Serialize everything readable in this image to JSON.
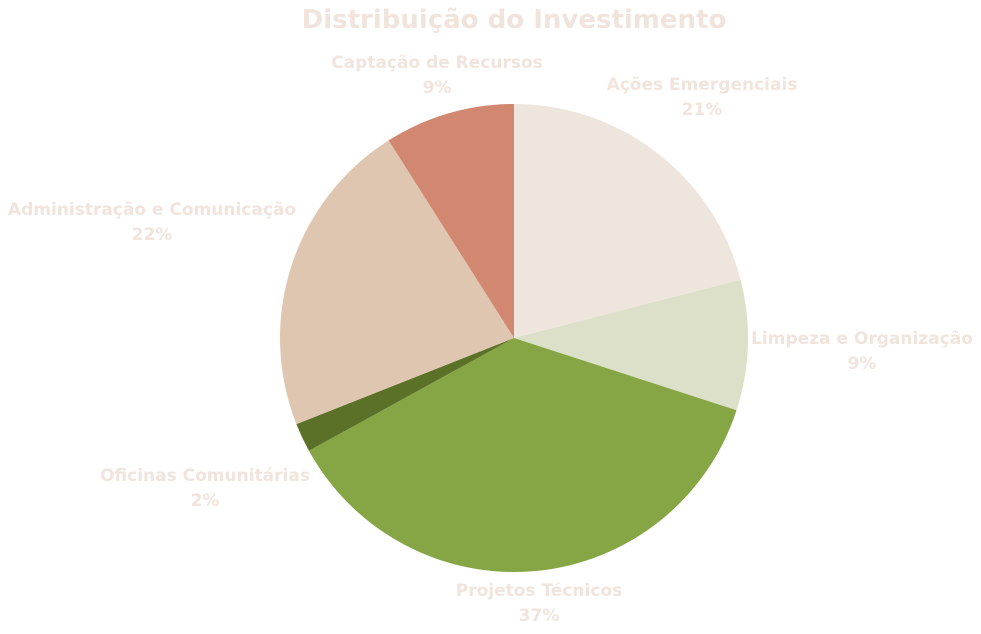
{
  "chart_data": {
    "type": "pie",
    "title": "Distribuição do Investimento",
    "title_color": "#F1E4DC",
    "label_color": "#F1E4DC",
    "slices": [
      {
        "label": "Ações Emergenciais",
        "percent_label": "21%",
        "value": 21,
        "color": "#EEE5DC"
      },
      {
        "label": "Limpeza e Organização",
        "percent_label": "9%",
        "value": 9,
        "color": "#DCE0C9"
      },
      {
        "label": "Projetos Técnicos",
        "percent_label": "37%",
        "value": 37,
        "color": "#86A645"
      },
      {
        "label": "Oficinas Comunitárias",
        "percent_label": "2%",
        "value": 2,
        "color": "#5B7127"
      },
      {
        "label": "Administração e Comunicação",
        "percent_label": "22%",
        "value": 22,
        "color": "#DFC6B0"
      },
      {
        "label": "Captação de Recursos",
        "percent_label": "9%",
        "value": 9,
        "color": "#D28870"
      }
    ]
  }
}
